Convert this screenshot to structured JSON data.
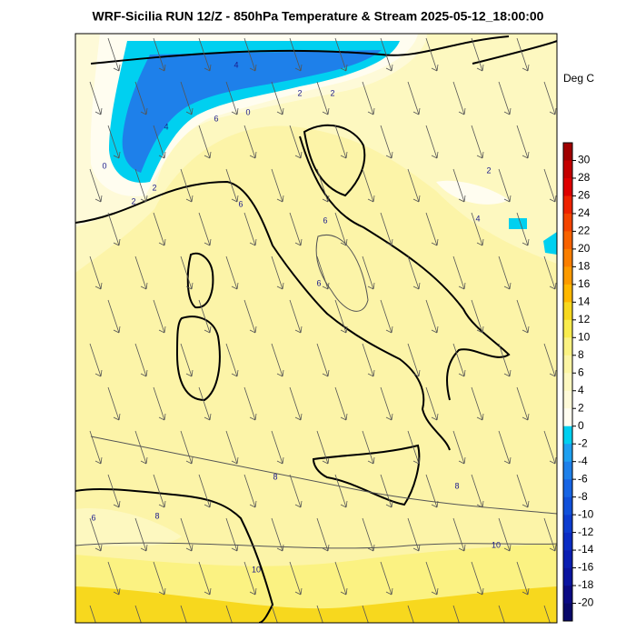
{
  "header": {
    "title": "WRF-Sicilia RUN 12/Z - 850hPa Temperature & Stream 2025-05-12_18:00:00"
  },
  "colorbar": {
    "unit": "Deg C",
    "ticks": [
      30,
      28,
      26,
      24,
      22,
      20,
      18,
      16,
      14,
      12,
      10,
      8,
      6,
      4,
      2,
      0,
      -2,
      -4,
      -6,
      -8,
      -10,
      -12,
      -14,
      -16,
      -18,
      -20
    ],
    "colors": [
      "#a00000",
      "#c40000",
      "#de0000",
      "#ee2200",
      "#f44400",
      "#f86200",
      "#fa7e00",
      "#fc9a00",
      "#ffb800",
      "#f7d81e",
      "#f9ec4e",
      "#fbf282",
      "#fcf5a4",
      "#fdf8c0",
      "#fefad8",
      "#fffdf0",
      "#00d0f0",
      "#1ea0f0",
      "#1e80ea",
      "#1664e4",
      "#1050da",
      "#0c3cd0",
      "#0a2cc4",
      "#0a1eb2",
      "#0a14a0",
      "#0a0a84",
      "#08086a"
    ]
  },
  "contour_labels": [
    "4",
    "2",
    "2",
    "0",
    "6",
    "4",
    "0",
    "2",
    "2",
    "6",
    "2",
    "4",
    "6",
    "6",
    "8",
    "8",
    "6",
    "8",
    "10",
    "10"
  ]
}
